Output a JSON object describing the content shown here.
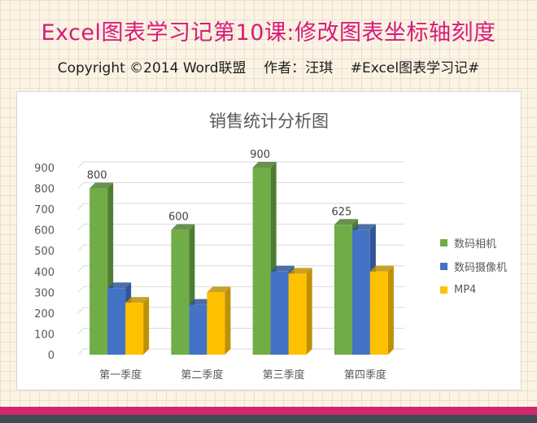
{
  "header": {
    "title": "Excel图表学习记第10课:修改图表坐标轴刻度",
    "subtitle": "Copyright ©2014 Word联盟    作者：汪琪    #Excel图表学习记#"
  },
  "colors": {
    "title": "#d81b78",
    "series": [
      "#70ad47",
      "#4472c4",
      "#ffc000"
    ],
    "series_dark": [
      "#4e7d32",
      "#2f5597",
      "#bf9000"
    ]
  },
  "chart_data": {
    "type": "bar",
    "style": "3d-clustered-column",
    "title": "销售统计分析图",
    "categories": [
      "第一季度",
      "第二季度",
      "第三季度",
      "第四季度"
    ],
    "series": [
      {
        "name": "数码相机",
        "values": [
          800,
          600,
          900,
          625
        ]
      },
      {
        "name": "数码摄像机",
        "values": [
          320,
          240,
          400,
          600
        ]
      },
      {
        "name": "MP4",
        "values": [
          250,
          300,
          390,
          400
        ]
      }
    ],
    "data_labels": {
      "series": 0,
      "values": [
        "800",
        "600",
        "900",
        "625"
      ]
    },
    "yticks": [
      "0",
      "100",
      "200",
      "300",
      "400",
      "500",
      "600",
      "700",
      "800",
      "900"
    ],
    "ylim": [
      0,
      900
    ],
    "grid": true,
    "legend_position": "right"
  }
}
